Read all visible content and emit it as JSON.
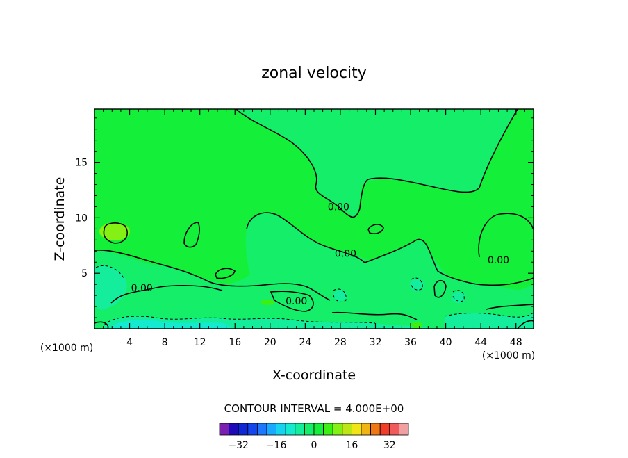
{
  "chart_data": {
    "type": "contour",
    "title": "zonal velocity",
    "xlabel": "X-coordinate",
    "ylabel": "Z-coordinate",
    "x_unit_label": "(×1000 m)",
    "x_unit_label_right": "(×1000 m)",
    "xlim": [
      0,
      50
    ],
    "ylim": [
      0,
      19.8
    ],
    "x_ticks": [
      4,
      8,
      12,
      16,
      20,
      24,
      28,
      32,
      36,
      40,
      44,
      48
    ],
    "x_tick_labels": [
      "4",
      "8",
      "12",
      "16",
      "20",
      "24",
      "28",
      "32",
      "36",
      "40",
      "44",
      "48"
    ],
    "y_ticks": [
      5,
      10,
      15
    ],
    "y_tick_labels": [
      "5",
      "10",
      "15"
    ],
    "contour_interval_text": "CONTOUR INTERVAL = 4.000E+00",
    "contour_labels": [
      {
        "text": "0.00",
        "x": 27.8,
        "y": 11.0
      },
      {
        "text": "0.00",
        "x": 28.6,
        "y": 6.8
      },
      {
        "text": "0.00",
        "x": 46.0,
        "y": 6.2
      },
      {
        "text": "0.00",
        "x": 5.4,
        "y": 3.7
      },
      {
        "text": "0.00",
        "x": 23.0,
        "y": 2.5
      }
    ],
    "colorbar": {
      "levels": [
        -36,
        -32,
        -28,
        -24,
        -20,
        -16,
        -12,
        -8,
        -4,
        0,
        4,
        8,
        12,
        16,
        20,
        24,
        28,
        32,
        36
      ],
      "colors": [
        "#7a1fb0",
        "#1f0ab8",
        "#0f28d6",
        "#1446f0",
        "#1e78ff",
        "#19a9ff",
        "#16d4f0",
        "#14ead0",
        "#14ee9c",
        "#14ee68",
        "#14f03a",
        "#3cf014",
        "#84f014",
        "#bce614",
        "#f0e614",
        "#f0b414",
        "#f07814",
        "#f03c28",
        "#f05a5a",
        "#f0a0a0"
      ],
      "tick_values": [
        -32,
        -16,
        0,
        16,
        32
      ],
      "tick_labels": [
        "−32",
        "−16",
        "0",
        "16",
        "32"
      ]
    },
    "field_colors": {
      "zero_to_four": "#14f03a",
      "four_to_eight": "#3cf014",
      "minus4_to_0": "#14ee68",
      "minus8_to_minus4": "#14ee9c",
      "minus12_to_minus8": "#14ead0",
      "eight_to_twelve": "#84f014"
    }
  }
}
